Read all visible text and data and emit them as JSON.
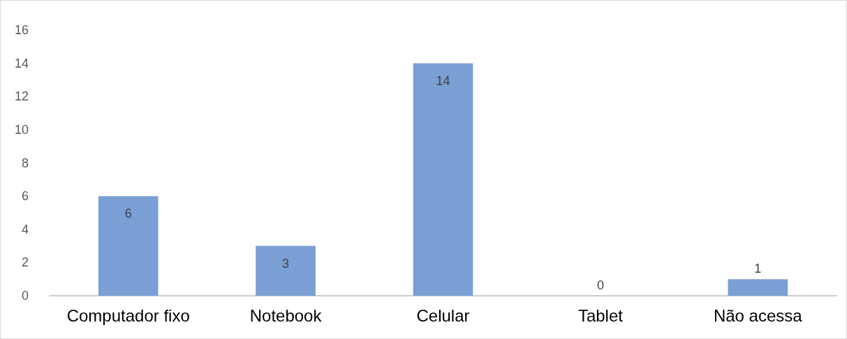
{
  "chart_data": {
    "type": "bar",
    "categories": [
      "Computador fixo",
      "Notebook",
      "Celular",
      "Tablet",
      "Não acessa"
    ],
    "values": [
      6,
      3,
      14,
      0,
      1
    ],
    "color": "#7a9fd4",
    "ylim": [
      0,
      16
    ],
    "yticks": [
      0,
      2,
      4,
      6,
      8,
      10,
      12,
      14,
      16
    ],
    "data_labels": true
  }
}
